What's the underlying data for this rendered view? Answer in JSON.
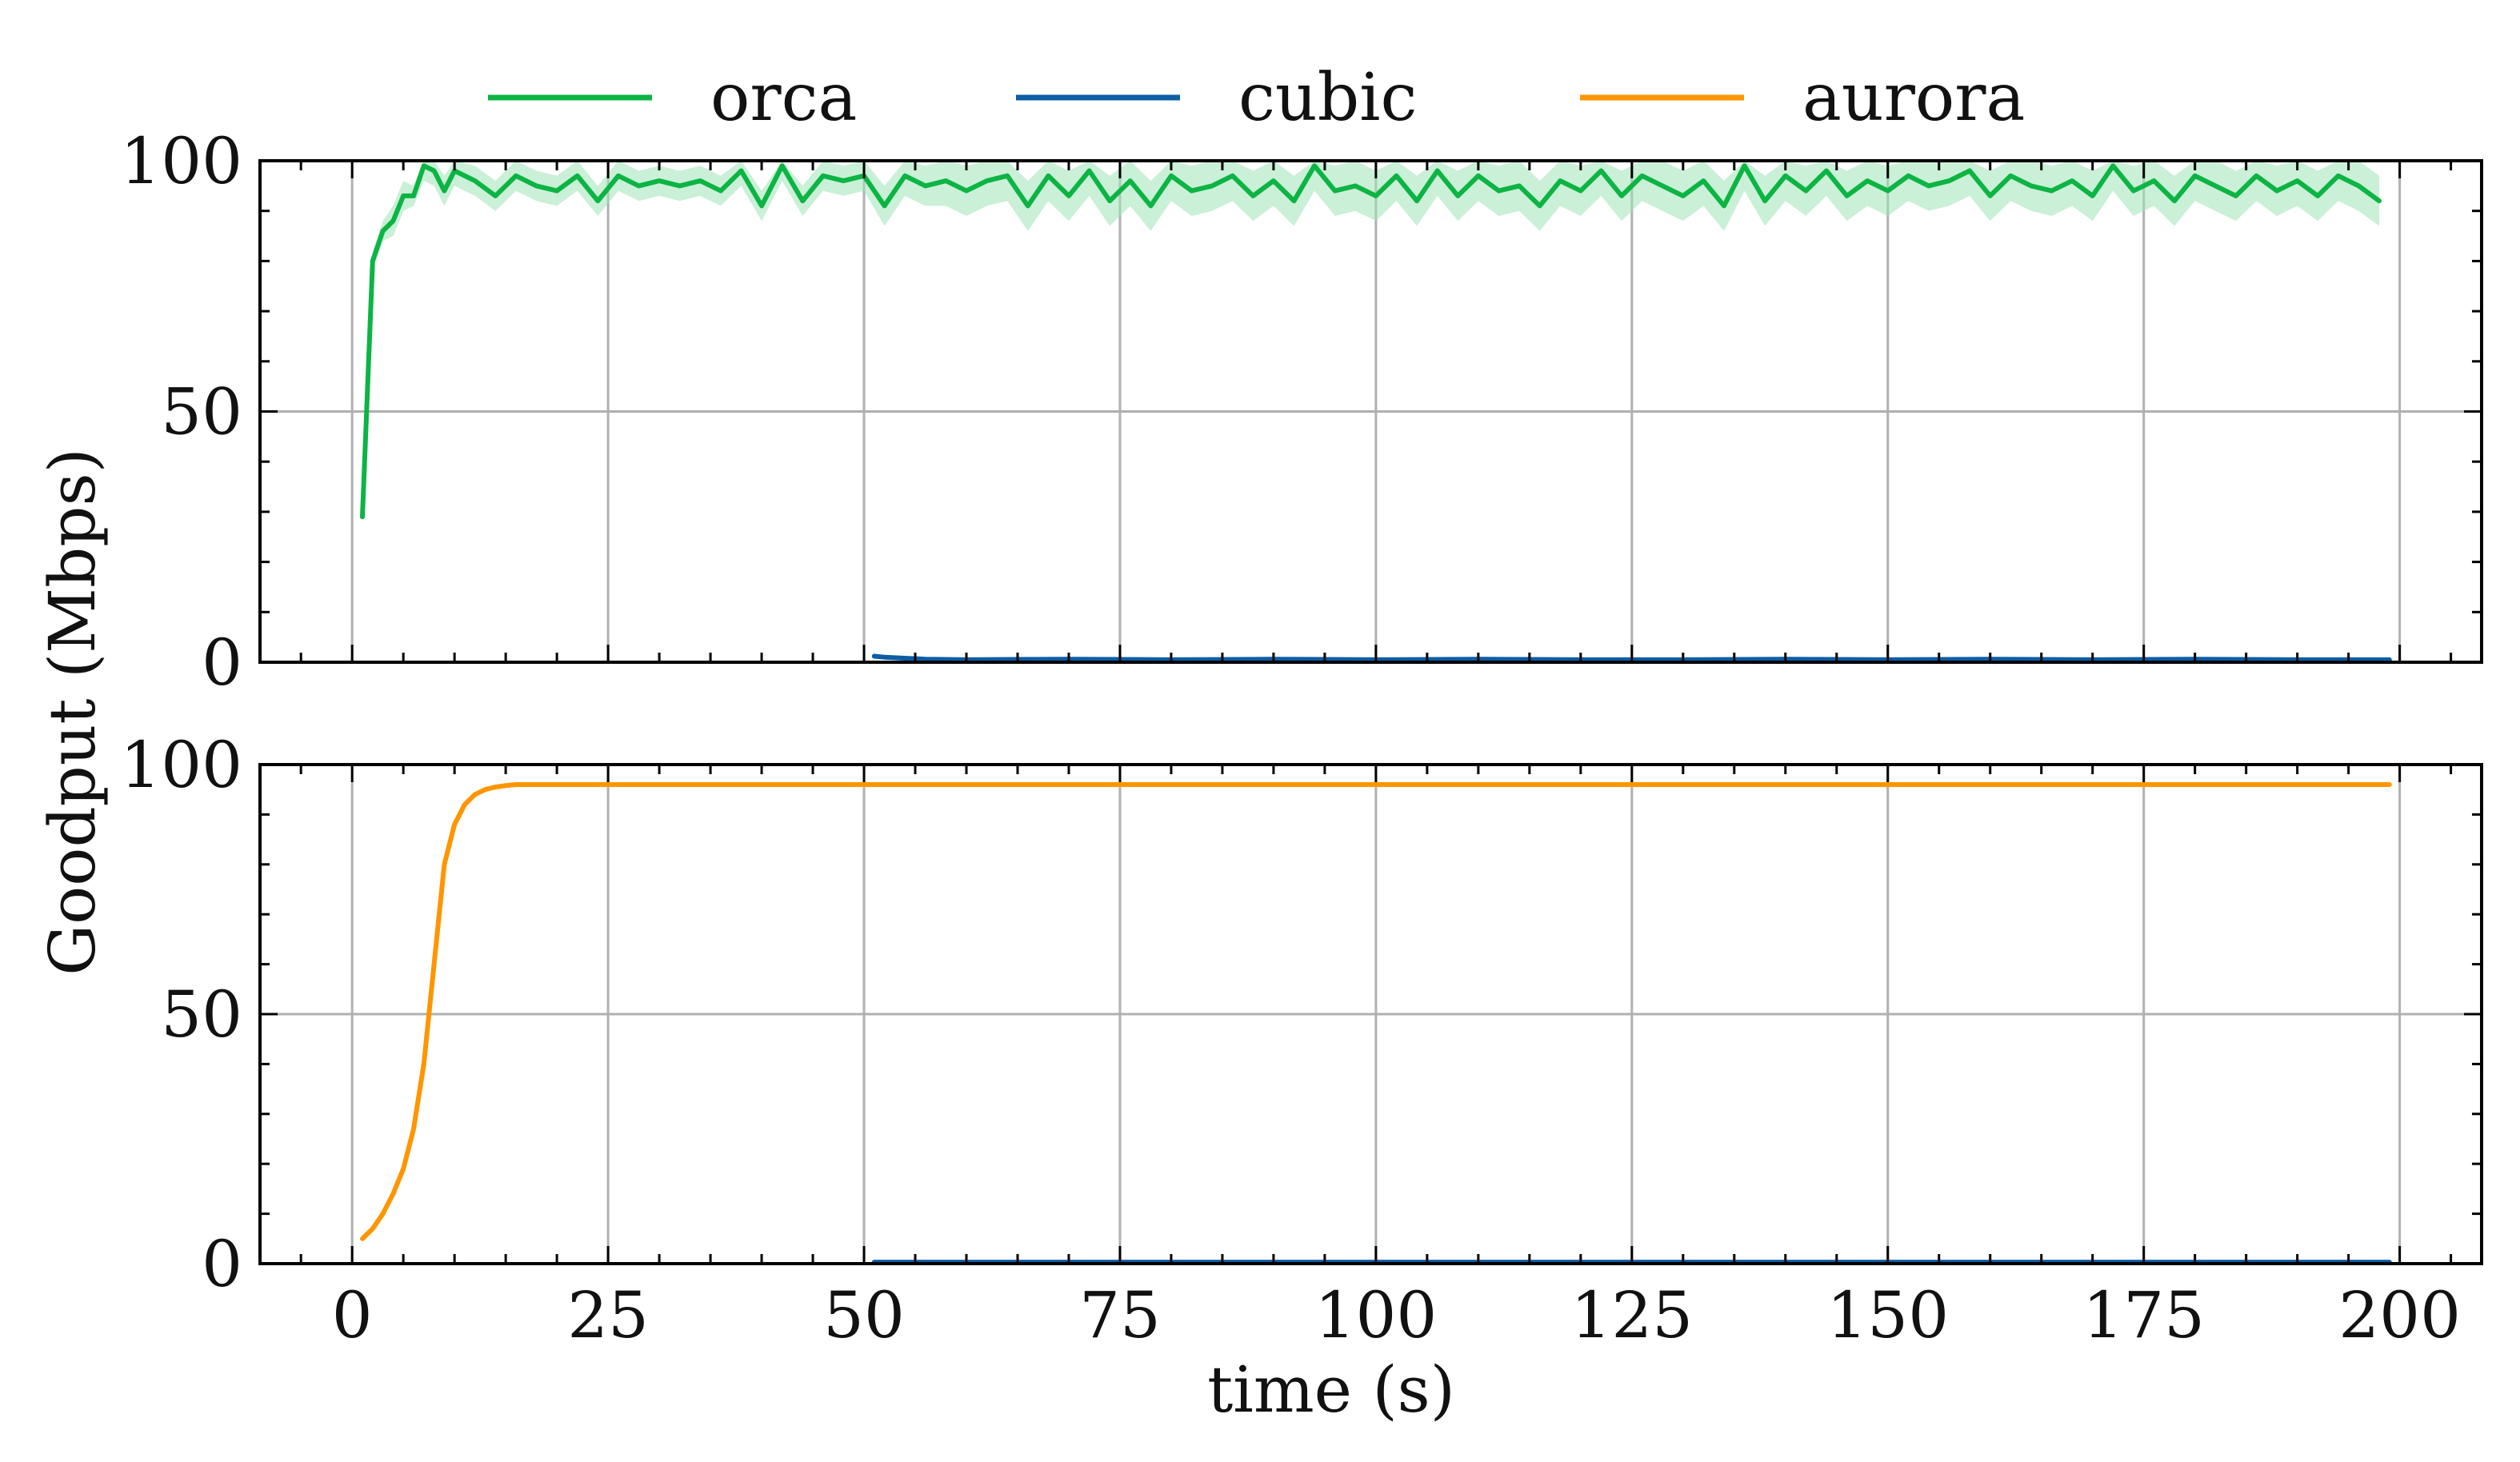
{
  "chart_data": [
    {
      "type": "line",
      "panel": "top",
      "ylabel": "Goodput (Mbps)",
      "xlabel": "",
      "xlim": [
        -9,
        208
      ],
      "ylim": [
        0,
        100
      ],
      "xticks": [
        0,
        25,
        50,
        75,
        100,
        125,
        150,
        175,
        200
      ],
      "yticks": [
        0,
        50,
        100
      ],
      "grid": true,
      "legend": {
        "placement": "top-center",
        "entries": [
          {
            "name": "orca",
            "color": "#0cb444"
          },
          {
            "name": "cubic",
            "color": "#0c5da5"
          },
          {
            "name": "aurora",
            "color": "#ff9500"
          }
        ]
      },
      "series": [
        {
          "name": "orca",
          "color": "#0cb444",
          "band_color": "#9fe3b6",
          "x": [
            1,
            2,
            3,
            4,
            5,
            6,
            7,
            8,
            9,
            10,
            12,
            14,
            16,
            18,
            20,
            22,
            24,
            26,
            28,
            30,
            32,
            34,
            36,
            38,
            40,
            42,
            44,
            46,
            48,
            50,
            52,
            54,
            56,
            58,
            60,
            62,
            64,
            66,
            68,
            70,
            72,
            74,
            76,
            78,
            80,
            82,
            84,
            86,
            88,
            90,
            92,
            94,
            96,
            98,
            100,
            102,
            104,
            106,
            108,
            110,
            112,
            114,
            116,
            118,
            120,
            122,
            124,
            126,
            128,
            130,
            132,
            134,
            136,
            138,
            140,
            142,
            144,
            146,
            148,
            150,
            152,
            154,
            156,
            158,
            160,
            162,
            164,
            166,
            168,
            170,
            172,
            174,
            176,
            178,
            180,
            182,
            184,
            186,
            188,
            190,
            192,
            194,
            196,
            198
          ],
          "y": [
            29,
            80,
            86,
            88,
            93,
            93,
            99,
            98,
            94,
            98,
            96,
            93,
            97,
            95,
            94,
            97,
            92,
            97,
            95,
            96,
            95,
            96,
            94,
            98,
            91,
            99,
            92,
            97,
            96,
            97,
            91,
            97,
            95,
            96,
            94,
            96,
            97,
            91,
            97,
            93,
            98,
            92,
            96,
            91,
            97,
            94,
            95,
            97,
            93,
            96,
            92,
            99,
            94,
            95,
            93,
            97,
            92,
            98,
            93,
            97,
            94,
            95,
            91,
            96,
            94,
            98,
            93,
            97,
            95,
            93,
            96,
            91,
            99,
            92,
            97,
            94,
            98,
            93,
            96,
            94,
            97,
            95,
            96,
            98,
            93,
            97,
            95,
            94,
            96,
            93,
            99,
            94,
            96,
            92,
            97,
            95,
            93,
            97,
            94,
            96,
            93,
            97,
            95,
            92
          ],
          "band_low": [
            29,
            78,
            84,
            85,
            90,
            91,
            96,
            95,
            91,
            95,
            93,
            90,
            94,
            92,
            91,
            94,
            89,
            94,
            92,
            93,
            92,
            93,
            91,
            95,
            88,
            96,
            89,
            94,
            93,
            94,
            87,
            93,
            91,
            91,
            89,
            91,
            92,
            86,
            92,
            88,
            93,
            87,
            91,
            86,
            92,
            89,
            90,
            92,
            88,
            91,
            87,
            94,
            89,
            90,
            88,
            92,
            87,
            93,
            88,
            92,
            89,
            90,
            86,
            91,
            89,
            93,
            88,
            92,
            90,
            88,
            91,
            86,
            94,
            87,
            92,
            89,
            93,
            88,
            91,
            89,
            92,
            90,
            91,
            93,
            88,
            92,
            90,
            89,
            91,
            88,
            94,
            89,
            91,
            87,
            92,
            90,
            88,
            92,
            89,
            91,
            88,
            92,
            90,
            87
          ],
          "band_high": [
            29,
            82,
            88,
            91,
            96,
            95,
            100,
            100,
            97,
            100,
            99,
            96,
            100,
            98,
            97,
            100,
            95,
            100,
            98,
            99,
            98,
            99,
            97,
            100,
            94,
            100,
            95,
            100,
            99,
            100,
            95,
            100,
            99,
            100,
            99,
            100,
            100,
            96,
            100,
            98,
            100,
            97,
            100,
            96,
            100,
            99,
            100,
            100,
            98,
            100,
            97,
            100,
            99,
            100,
            98,
            100,
            97,
            100,
            98,
            100,
            99,
            100,
            96,
            100,
            99,
            100,
            98,
            100,
            100,
            98,
            100,
            96,
            100,
            97,
            100,
            99,
            100,
            98,
            100,
            99,
            100,
            100,
            100,
            100,
            98,
            100,
            100,
            99,
            100,
            98,
            100,
            99,
            100,
            97,
            100,
            100,
            98,
            100,
            99,
            100,
            98,
            100,
            100,
            97
          ]
        },
        {
          "name": "cubic",
          "color": "#0c5da5",
          "x": [
            51,
            52,
            54,
            56,
            60,
            70,
            80,
            90,
            100,
            110,
            120,
            130,
            140,
            150,
            160,
            170,
            180,
            190,
            199
          ],
          "y": [
            1.2,
            1.0,
            0.8,
            0.6,
            0.5,
            0.6,
            0.5,
            0.6,
            0.5,
            0.6,
            0.5,
            0.5,
            0.6,
            0.5,
            0.6,
            0.5,
            0.6,
            0.5,
            0.5
          ]
        }
      ]
    },
    {
      "type": "line",
      "panel": "bottom",
      "xlabel": "time (s)",
      "ylabel": "",
      "xlim": [
        -9,
        208
      ],
      "ylim": [
        0,
        100
      ],
      "xticks": [
        0,
        25,
        50,
        75,
        100,
        125,
        150,
        175,
        200
      ],
      "yticks": [
        0,
        50,
        100
      ],
      "grid": true,
      "series": [
        {
          "name": "aurora",
          "color": "#ff9500",
          "x": [
            1,
            2,
            3,
            4,
            5,
            6,
            7,
            8,
            9,
            10,
            11,
            12,
            13,
            14,
            15,
            16,
            17,
            18,
            20,
            199
          ],
          "y": [
            5,
            7,
            10,
            14,
            19,
            27,
            40,
            60,
            80,
            88,
            92,
            94,
            95,
            95.5,
            95.8,
            96,
            96,
            96,
            96,
            96
          ]
        },
        {
          "name": "cubic",
          "color": "#0c5da5",
          "x": [
            51,
            199
          ],
          "y": [
            0.3,
            0.3
          ]
        }
      ]
    }
  ]
}
